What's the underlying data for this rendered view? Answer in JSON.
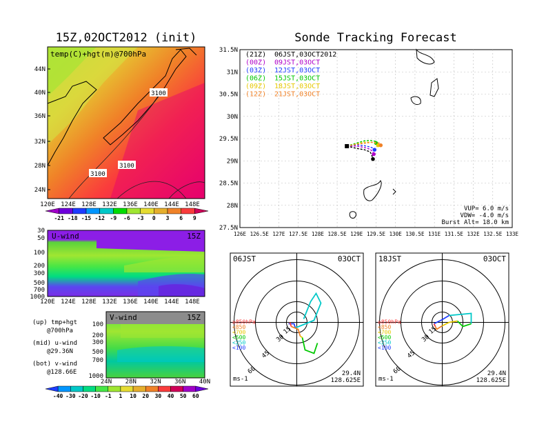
{
  "left_title": "15Z,02OCT2012 (init)",
  "right_title": "Sonde Tracking Forecast",
  "map_panel": {
    "label": "temp(C)+hgt(m)@700hPa",
    "lat_ticks": [
      "44N",
      "40N",
      "36N",
      "32N",
      "28N",
      "24N"
    ],
    "lon_ticks": [
      "120E",
      "124E",
      "128E",
      "132E",
      "136E",
      "140E",
      "144E",
      "148E"
    ],
    "contour_labels": [
      "3100",
      "3100",
      "3100"
    ]
  },
  "temp_colorbar": {
    "labels": [
      "-21",
      "-18",
      "-15",
      "-12",
      "-9",
      "-6",
      "-3",
      "0",
      "3",
      "6",
      "9"
    ],
    "colors": [
      "#a000c8",
      "#6e00dc",
      "#1e3cff",
      "#0096ff",
      "#00c8c8",
      "#00dc00",
      "#a0e632",
      "#e6dc32",
      "#e6af2d",
      "#f08228",
      "#fa3c3c",
      "#d10058"
    ]
  },
  "u_panel": {
    "label": "U-wind",
    "time": "15Z",
    "p_ticks": [
      "30",
      "50",
      "100",
      "200",
      "300",
      "500",
      "700",
      "1000"
    ],
    "lon_ticks": [
      "120E",
      "124E",
      "128E",
      "132E",
      "136E",
      "140E",
      "144E",
      "148E"
    ]
  },
  "v_panel": {
    "label": "V-wind",
    "time": "15Z",
    "p_ticks": [
      "100",
      "200",
      "300",
      "500",
      "700",
      "1000"
    ],
    "lat_ticks": [
      "24N",
      "28N",
      "32N",
      "36N",
      "40N"
    ]
  },
  "side_notes": [
    {
      "line1": "(up) tmp+hgt",
      "line2": "@700hPa"
    },
    {
      "line1": "(mid) u-wind",
      "line2": "@29.36N"
    },
    {
      "line1": "(bot) v-wind",
      "line2": "@128.66E"
    }
  ],
  "wind_colorbar": {
    "labels": [
      "-40",
      "-30",
      "-20",
      "-10",
      "-1",
      "1",
      "10",
      "20",
      "30",
      "40",
      "50",
      "60"
    ],
    "colors": [
      "#1e3cff",
      "#0096ff",
      "#00c8c8",
      "#00dc82",
      "#46e646",
      "#a0e632",
      "#e6dc32",
      "#e6af2d",
      "#f08228",
      "#fa3c3c",
      "#d10058",
      "#a000c8",
      "#6e00dc"
    ]
  },
  "tracking_map": {
    "lat_ticks": [
      "31.5N",
      "31N",
      "30.5N",
      "30N",
      "29.5N",
      "29N",
      "28.5N",
      "28N",
      "27.5N"
    ],
    "lon_ticks": [
      "126E",
      "126.5E",
      "127E",
      "127.5E",
      "128E",
      "128.5E",
      "129E",
      "129.5E",
      "130E",
      "130.5E",
      "131E",
      "131.5E",
      "132E",
      "132.5E",
      "133E"
    ],
    "legend": [
      {
        "run": "(21Z)",
        "time": "06JST,03OCT2012",
        "color": "#000000"
      },
      {
        "run": "(00Z)",
        "time": "09JST,03OCT",
        "color": "#b000c8"
      },
      {
        "run": "(03Z)",
        "time": "12JST,03OCT",
        "color": "#1e3cff"
      },
      {
        "run": "(06Z)",
        "time": "15JST,03OCT",
        "color": "#00c800"
      },
      {
        "run": "(09Z)",
        "time": "18JST,03OCT",
        "color": "#e6c800"
      },
      {
        "run": "(12Z)",
        "time": "21JST,03OCT",
        "color": "#f08228"
      }
    ],
    "params": [
      "VUP=  6.0  m/s",
      "VDW= -4.0  m/s",
      "Burst Alt=  18.0  km"
    ]
  },
  "chart_data": [
    {
      "type": "heatmap",
      "title": "15Z,02OCT2012 (init)",
      "label": "temp(C)+hgt(m)@700hPa",
      "xlim": [
        "120E",
        "148E"
      ],
      "ylim": [
        "22N",
        "47N"
      ]
    },
    {
      "type": "heatmap",
      "label": "U-wind",
      "ylabel_ticks": [
        30,
        50,
        100,
        200,
        300,
        500,
        700,
        1000
      ]
    },
    {
      "type": "heatmap",
      "label": "V-wind",
      "ylabel_ticks": [
        100,
        200,
        300,
        500,
        700,
        1000
      ]
    },
    {
      "type": "line",
      "title": "Sonde Tracking Forecast",
      "xlim": [
        126,
        133
      ],
      "ylim": [
        27.5,
        31.5
      ],
      "series": [
        {
          "name": "(21Z)",
          "x": [
            128.75,
            129.0,
            129.2,
            129.35,
            129.4,
            129.42
          ],
          "y": [
            29.33,
            29.28,
            29.25,
            29.2,
            29.1,
            29.04
          ]
        },
        {
          "name": "(00Z)",
          "x": [
            128.75,
            129.0,
            129.2,
            129.35,
            129.42,
            129.44
          ],
          "y": [
            29.33,
            29.33,
            29.3,
            29.26,
            29.2,
            29.15
          ]
        },
        {
          "name": "(03Z)",
          "x": [
            128.75,
            129.0,
            129.2,
            129.35,
            129.44,
            129.46
          ],
          "y": [
            29.33,
            29.36,
            29.34,
            29.31,
            29.28,
            29.25
          ]
        },
        {
          "name": "(06Z)",
          "x": [
            128.75,
            129.0,
            129.2,
            129.35,
            129.48,
            129.5
          ],
          "y": [
            29.33,
            29.4,
            29.45,
            29.46,
            29.44,
            29.4
          ]
        },
        {
          "name": "(09Z)",
          "x": [
            128.75,
            129.0,
            129.2,
            129.35,
            129.48,
            129.55
          ],
          "y": [
            29.33,
            29.38,
            29.42,
            29.42,
            29.4,
            29.35
          ]
        },
        {
          "name": "(12Z)",
          "x": [
            128.75,
            129.0,
            129.25,
            129.42,
            129.58,
            129.62
          ],
          "y": [
            29.33,
            29.37,
            29.4,
            29.42,
            29.4,
            29.35
          ]
        }
      ]
    }
  ],
  "hodo_left": {
    "time": "06JST",
    "date": "03OCT",
    "units": "ms-1",
    "rings": [
      "15",
      "30",
      "45",
      "60"
    ],
    "lat": "29.4N",
    "lon": "128.625E",
    "levels": [
      {
        "t": "≥850hPa",
        "c": "#fa3c3c"
      },
      {
        "t": "<850",
        "c": "#f08228"
      },
      {
        "t": "<700",
        "c": "#e6c800"
      },
      {
        "t": "<500",
        "c": "#00c800"
      },
      {
        "t": "<250",
        "c": "#00c8c8"
      },
      {
        "t": "<100",
        "c": "#1e3cff"
      }
    ]
  },
  "hodo_right": {
    "time": "18JST",
    "date": "03OCT",
    "units": "ms-1",
    "rings": [
      "15",
      "30",
      "45",
      "60"
    ],
    "lat": "29.4N",
    "lon": "128.625E",
    "levels": [
      {
        "t": "≥850hPa",
        "c": "#fa3c3c"
      },
      {
        "t": "<850",
        "c": "#f08228"
      },
      {
        "t": "<700",
        "c": "#e6c800"
      },
      {
        "t": "<500",
        "c": "#00c800"
      },
      {
        "t": "<250",
        "c": "#00c8c8"
      },
      {
        "t": "<100",
        "c": "#1e3cff"
      }
    ]
  }
}
